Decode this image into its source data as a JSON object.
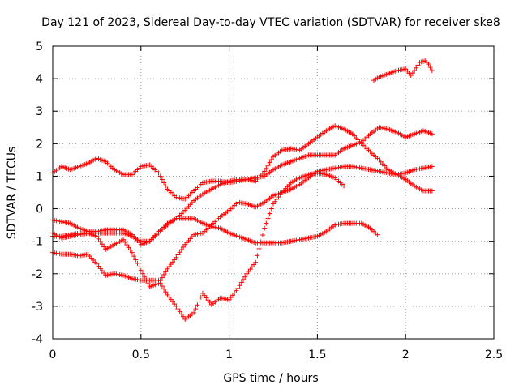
{
  "chart_data": {
    "type": "scatter",
    "title": "Day 121 of 2023, Sidereal Day-to-day VTEC variation (SDTVAR) for receiver ske8",
    "xlabel": "GPS time / hours",
    "ylabel": "SDTVAR / TECUs",
    "xlim": [
      0,
      2.5
    ],
    "ylim": [
      -4,
      5
    ],
    "xticks": [
      "0",
      "0.5",
      "1",
      "1.5",
      "2",
      "2.5"
    ],
    "yticks": [
      "-4",
      "-3",
      "-2",
      "-1",
      "0",
      "1",
      "2",
      "3",
      "4",
      "5"
    ],
    "grid": true,
    "marker": "+",
    "color": "#ff0000",
    "series": [
      {
        "points": [
          [
            0.0,
            1.1
          ],
          [
            0.05,
            1.3
          ],
          [
            0.1,
            1.2
          ],
          [
            0.15,
            1.3
          ],
          [
            0.2,
            1.4
          ],
          [
            0.25,
            1.55
          ],
          [
            0.3,
            1.45
          ],
          [
            0.35,
            1.2
          ],
          [
            0.4,
            1.05
          ],
          [
            0.45,
            1.05
          ],
          [
            0.5,
            1.3
          ],
          [
            0.55,
            1.35
          ],
          [
            0.6,
            1.1
          ],
          [
            0.65,
            0.6
          ],
          [
            0.7,
            0.35
          ],
          [
            0.75,
            0.3
          ],
          [
            0.8,
            0.55
          ],
          [
            0.85,
            0.8
          ],
          [
            0.9,
            0.85
          ],
          [
            0.95,
            0.85
          ],
          [
            1.0,
            0.8
          ],
          [
            1.05,
            0.85
          ],
          [
            1.1,
            0.9
          ],
          [
            1.15,
            0.85
          ],
          [
            1.2,
            1.15
          ],
          [
            1.25,
            1.6
          ],
          [
            1.3,
            1.8
          ],
          [
            1.35,
            1.85
          ],
          [
            1.4,
            1.8
          ],
          [
            1.45,
            2.0
          ],
          [
            1.5,
            2.2
          ],
          [
            1.55,
            2.4
          ],
          [
            1.6,
            2.55
          ],
          [
            1.65,
            2.45
          ],
          [
            1.7,
            2.3
          ],
          [
            1.75,
            2.0
          ],
          [
            1.8,
            1.75
          ],
          [
            1.85,
            1.5
          ],
          [
            1.9,
            1.2
          ],
          [
            1.95,
            1.05
          ],
          [
            2.0,
            0.9
          ],
          [
            2.05,
            0.7
          ],
          [
            2.1,
            0.55
          ],
          [
            2.15,
            0.55
          ]
        ]
      },
      {
        "points": [
          [
            0.0,
            -0.35
          ],
          [
            0.05,
            -0.4
          ],
          [
            0.1,
            -0.45
          ],
          [
            0.15,
            -0.6
          ],
          [
            0.2,
            -0.7
          ],
          [
            0.25,
            -0.7
          ],
          [
            0.3,
            -0.65
          ],
          [
            0.35,
            -0.65
          ],
          [
            0.4,
            -0.65
          ],
          [
            0.45,
            -0.8
          ],
          [
            0.5,
            -1.1
          ],
          [
            0.55,
            -1.0
          ],
          [
            0.6,
            -0.7
          ],
          [
            0.65,
            -0.5
          ],
          [
            0.7,
            -0.3
          ],
          [
            0.75,
            -0.05
          ],
          [
            0.8,
            0.25
          ],
          [
            0.85,
            0.45
          ],
          [
            0.9,
            0.6
          ],
          [
            0.95,
            0.75
          ],
          [
            1.0,
            0.85
          ],
          [
            1.05,
            0.9
          ],
          [
            1.1,
            0.9
          ],
          [
            1.15,
            0.95
          ],
          [
            1.2,
            1.0
          ],
          [
            1.25,
            1.2
          ],
          [
            1.3,
            1.35
          ],
          [
            1.35,
            1.45
          ],
          [
            1.4,
            1.55
          ],
          [
            1.45,
            1.65
          ],
          [
            1.5,
            1.65
          ],
          [
            1.55,
            1.65
          ],
          [
            1.6,
            1.65
          ],
          [
            1.65,
            1.85
          ],
          [
            1.7,
            1.95
          ],
          [
            1.75,
            2.05
          ],
          [
            1.8,
            2.3
          ],
          [
            1.85,
            2.5
          ],
          [
            1.9,
            2.45
          ],
          [
            1.95,
            2.35
          ],
          [
            2.0,
            2.2
          ],
          [
            2.05,
            2.3
          ],
          [
            2.1,
            2.4
          ],
          [
            2.15,
            2.3
          ]
        ]
      },
      {
        "points": [
          [
            0.0,
            -0.75
          ],
          [
            0.05,
            -0.9
          ],
          [
            0.1,
            -0.85
          ],
          [
            0.15,
            -0.8
          ],
          [
            0.2,
            -0.75
          ],
          [
            0.25,
            -0.85
          ],
          [
            0.3,
            -1.25
          ],
          [
            0.35,
            -1.1
          ],
          [
            0.4,
            -0.95
          ],
          [
            0.45,
            -1.35
          ],
          [
            0.5,
            -1.9
          ],
          [
            0.55,
            -2.4
          ],
          [
            0.6,
            -2.3
          ],
          [
            0.65,
            -1.85
          ],
          [
            0.7,
            -1.5
          ],
          [
            0.75,
            -1.1
          ],
          [
            0.8,
            -0.8
          ],
          [
            0.85,
            -0.75
          ],
          [
            0.9,
            -0.5
          ],
          [
            0.95,
            -0.25
          ],
          [
            1.0,
            -0.05
          ],
          [
            1.05,
            0.2
          ],
          [
            1.1,
            0.15
          ],
          [
            1.15,
            0.05
          ],
          [
            1.2,
            0.2
          ],
          [
            1.25,
            0.4
          ],
          [
            1.3,
            0.5
          ],
          [
            1.35,
            0.6
          ],
          [
            1.4,
            0.75
          ],
          [
            1.45,
            0.95
          ],
          [
            1.5,
            1.15
          ],
          [
            1.55,
            1.2
          ],
          [
            1.6,
            1.25
          ],
          [
            1.65,
            1.3
          ],
          [
            1.7,
            1.3
          ],
          [
            1.75,
            1.25
          ],
          [
            1.8,
            1.2
          ],
          [
            1.85,
            1.15
          ],
          [
            1.9,
            1.1
          ],
          [
            1.95,
            1.05
          ],
          [
            2.0,
            1.1
          ],
          [
            2.05,
            1.2
          ],
          [
            2.1,
            1.25
          ],
          [
            2.15,
            1.3
          ]
        ]
      },
      {
        "points": [
          [
            0.0,
            -1.35
          ],
          [
            0.05,
            -1.4
          ],
          [
            0.1,
            -1.4
          ],
          [
            0.15,
            -1.45
          ],
          [
            0.2,
            -1.4
          ],
          [
            0.25,
            -1.7
          ],
          [
            0.3,
            -2.05
          ],
          [
            0.35,
            -2.0
          ],
          [
            0.4,
            -2.05
          ],
          [
            0.45,
            -2.15
          ],
          [
            0.5,
            -2.2
          ],
          [
            0.55,
            -2.2
          ],
          [
            0.6,
            -2.2
          ],
          [
            0.65,
            -2.65
          ],
          [
            0.7,
            -3.0
          ],
          [
            0.75,
            -3.4
          ],
          [
            0.8,
            -3.2
          ],
          [
            0.85,
            -2.6
          ],
          [
            0.9,
            -2.95
          ],
          [
            0.95,
            -2.75
          ],
          [
            1.0,
            -2.8
          ],
          [
            1.05,
            -2.45
          ],
          [
            1.1,
            -2.0
          ],
          [
            1.15,
            -1.65
          ],
          [
            1.2,
            -0.6
          ],
          [
            1.25,
            0.15
          ],
          [
            1.3,
            0.5
          ],
          [
            1.35,
            0.8
          ],
          [
            1.4,
            0.95
          ],
          [
            1.45,
            1.05
          ],
          [
            1.5,
            1.1
          ],
          [
            1.55,
            1.05
          ],
          [
            1.6,
            0.95
          ],
          [
            1.65,
            0.7
          ]
        ]
      },
      {
        "points": [
          [
            0.0,
            -0.85
          ],
          [
            0.05,
            -0.85
          ],
          [
            0.1,
            -0.8
          ],
          [
            0.15,
            -0.75
          ],
          [
            0.2,
            -0.75
          ],
          [
            0.25,
            -0.75
          ],
          [
            0.3,
            -0.75
          ],
          [
            0.35,
            -0.75
          ],
          [
            0.4,
            -0.75
          ],
          [
            0.45,
            -0.85
          ],
          [
            0.5,
            -1.0
          ],
          [
            0.55,
            -1.0
          ],
          [
            0.6,
            -0.75
          ],
          [
            0.65,
            -0.45
          ],
          [
            0.7,
            -0.3
          ],
          [
            0.75,
            -0.3
          ],
          [
            0.8,
            -0.3
          ],
          [
            0.85,
            -0.45
          ],
          [
            0.9,
            -0.55
          ],
          [
            0.95,
            -0.6
          ],
          [
            1.0,
            -0.75
          ],
          [
            1.05,
            -0.85
          ],
          [
            1.1,
            -0.95
          ],
          [
            1.15,
            -1.05
          ],
          [
            1.2,
            -1.05
          ],
          [
            1.25,
            -1.05
          ],
          [
            1.3,
            -1.05
          ],
          [
            1.35,
            -1.0
          ],
          [
            1.4,
            -0.95
          ],
          [
            1.45,
            -0.9
          ],
          [
            1.5,
            -0.85
          ],
          [
            1.55,
            -0.7
          ],
          [
            1.6,
            -0.5
          ],
          [
            1.65,
            -0.45
          ],
          [
            1.7,
            -0.45
          ],
          [
            1.75,
            -0.45
          ],
          [
            1.8,
            -0.6
          ],
          [
            1.84,
            -0.8
          ]
        ]
      },
      {
        "points": [
          [
            1.82,
            3.95
          ],
          [
            1.85,
            4.05
          ],
          [
            1.9,
            4.15
          ],
          [
            1.95,
            4.25
          ],
          [
            2.0,
            4.3
          ],
          [
            2.03,
            4.1
          ],
          [
            2.05,
            4.25
          ],
          [
            2.08,
            4.5
          ],
          [
            2.11,
            4.55
          ],
          [
            2.13,
            4.45
          ],
          [
            2.15,
            4.25
          ]
        ]
      }
    ]
  }
}
